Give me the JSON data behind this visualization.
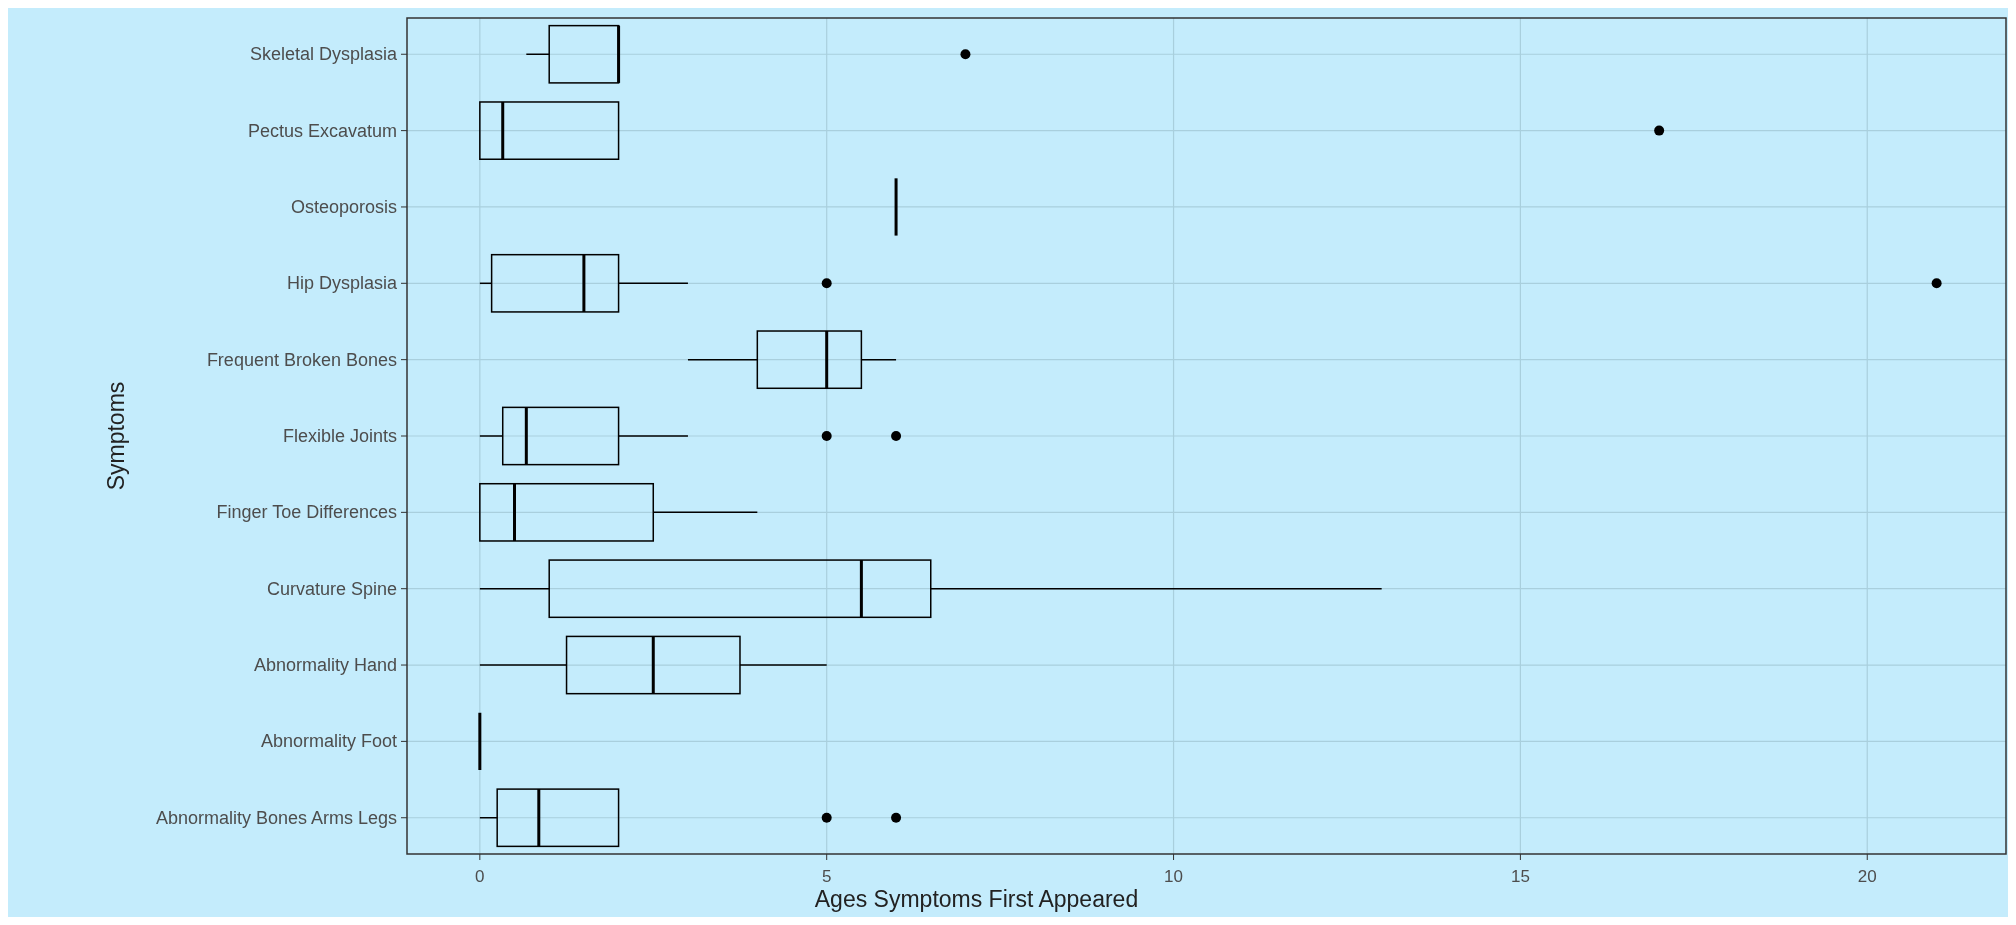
{
  "chart_data": {
    "type": "box",
    "orientation": "horizontal",
    "xlabel": "Ages Symptoms First Appeared",
    "ylabel": "Symptoms",
    "categories": [
      "Skeletal Dysplasia",
      "Pectus Excavatum",
      "Osteoporosis",
      "Hip Dysplasia",
      "Frequent Broken Bones",
      "Flexible Joints",
      "Finger Toe Differences",
      "Curvature Spine",
      "Abnormality Hand",
      "Abnormality Foot",
      "Abnormality Bones Arms Legs"
    ],
    "boxes": [
      {
        "low": 0.67,
        "q1": 1,
        "median": 2,
        "q3": 2,
        "high": 2,
        "outliers": [
          7
        ]
      },
      {
        "low": 0,
        "q1": 0,
        "median": 0.33,
        "q3": 2,
        "high": 2,
        "outliers": [
          17
        ]
      },
      {
        "low": 6,
        "q1": 6,
        "median": 6,
        "q3": 6,
        "high": 6
      },
      {
        "low": 0,
        "q1": 0.17,
        "median": 1.5,
        "q3": 2,
        "high": 3,
        "outliers": [
          5,
          21
        ]
      },
      {
        "low": 3,
        "q1": 4,
        "median": 5,
        "q3": 5.5,
        "high": 6
      },
      {
        "low": 0,
        "q1": 0.33,
        "median": 0.67,
        "q3": 2,
        "high": 3,
        "outliers": [
          5,
          6
        ]
      },
      {
        "low": 0,
        "q1": 0,
        "median": 0.5,
        "q3": 2.5,
        "high": 4
      },
      {
        "low": 0,
        "q1": 1,
        "median": 5.5,
        "q3": 6.5,
        "high": 13
      },
      {
        "low": 0,
        "q1": 1.25,
        "median": 2.5,
        "q3": 3.75,
        "high": 5
      },
      {
        "low": 0,
        "q1": 0,
        "median": 0,
        "q3": 0,
        "high": 0
      },
      {
        "low": 0,
        "q1": 0.25,
        "median": 0.85,
        "q3": 2,
        "high": 2,
        "outliers": [
          5,
          6
        ]
      }
    ],
    "xlim": [
      -1.05,
      22
    ],
    "xticks": [
      0,
      5,
      10,
      15,
      20
    ],
    "grid": true,
    "color": "#000000"
  }
}
